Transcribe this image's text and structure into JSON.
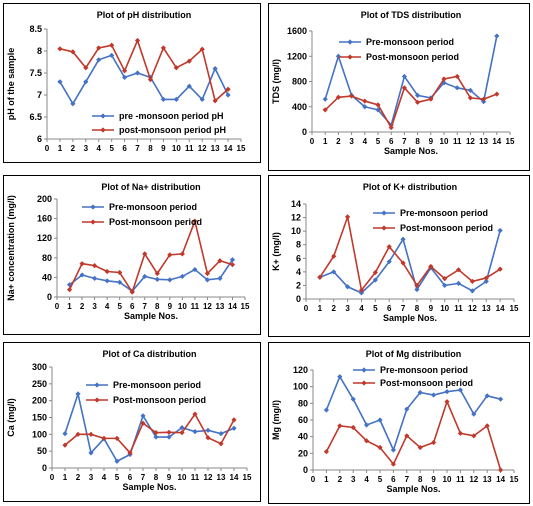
{
  "chart_data": [
    {
      "type": "line",
      "title": "Plot of pH distribution",
      "xlabel": "",
      "ylabel": "pH of the sample",
      "xlim": [
        0,
        15
      ],
      "ylim": [
        6,
        8.5
      ],
      "yticks": [
        6,
        6.5,
        7,
        7.5,
        8,
        8.5
      ],
      "ytick_labels": [
        "6",
        "6.5",
        "7",
        "7.5",
        "8",
        "8.5"
      ],
      "xticks": [
        0,
        1,
        2,
        3,
        4,
        5,
        6,
        7,
        8,
        9,
        10,
        11,
        12,
        13,
        14,
        15
      ],
      "xtick_labels": [
        "0",
        "1",
        "2",
        "3",
        "4",
        "5",
        "6",
        "7",
        "8",
        "9",
        "10",
        "11",
        "12",
        "13",
        "14",
        "15"
      ],
      "legend": "bottom-center",
      "x": [
        1,
        2,
        3,
        4,
        5,
        6,
        7,
        8,
        9,
        10,
        11,
        12,
        13,
        14
      ],
      "series": [
        {
          "name": "pre -monsoon period pH",
          "color": "#4472C4",
          "marker": "diamond",
          "values": [
            7.3,
            6.8,
            7.3,
            7.8,
            7.9,
            7.4,
            7.5,
            7.4,
            6.9,
            6.9,
            7.2,
            6.9,
            7.6,
            7.0
          ]
        },
        {
          "name": "post-monsoon period pH",
          "color": "#C0392B",
          "marker": "diamond",
          "values": [
            8.05,
            7.98,
            7.62,
            8.07,
            8.13,
            7.55,
            8.24,
            7.35,
            8.07,
            7.62,
            7.77,
            8.04,
            6.87,
            7.13
          ]
        }
      ]
    },
    {
      "type": "line",
      "title": "Plot of TDS distribution",
      "xlabel": "Sample Nos.",
      "ylabel": "TDS (mg/l)",
      "xlim": [
        0,
        15
      ],
      "ylim": [
        0,
        1600
      ],
      "yticks": [
        0,
        400,
        800,
        1200,
        1600
      ],
      "ytick_labels": [
        "0",
        "400",
        "800",
        "1200",
        "1600"
      ],
      "xticks": [
        0,
        1,
        2,
        3,
        4,
        5,
        6,
        7,
        8,
        9,
        10,
        11,
        12,
        13,
        14,
        15
      ],
      "xtick_labels": [
        "0",
        "1",
        "2",
        "3",
        "4",
        "5",
        "6",
        "7",
        "8",
        "9",
        "10",
        "11",
        "12",
        "13",
        "14",
        "15"
      ],
      "legend": "top-right",
      "x": [
        1,
        2,
        3,
        4,
        5,
        6,
        7,
        8,
        9,
        10,
        11,
        12,
        13,
        14
      ],
      "series": [
        {
          "name": "Pre-monsoon period",
          "color": "#4472C4",
          "marker": "diamond",
          "values": [
            520,
            1200,
            580,
            400,
            350,
            110,
            880,
            580,
            540,
            780,
            700,
            660,
            480,
            1520
          ]
        },
        {
          "name": "Post-monsoon period",
          "color": "#C0392B",
          "marker": "diamond",
          "values": [
            350,
            550,
            570,
            490,
            430,
            70,
            700,
            470,
            520,
            840,
            880,
            540,
            520,
            600
          ]
        }
      ]
    },
    {
      "type": "line",
      "title": "Plot of Na+ distribution",
      "xlabel": "Sample Nos.",
      "ylabel": "Na+ concentration (mg/l)",
      "xlim": [
        0,
        15
      ],
      "ylim": [
        0,
        200
      ],
      "yticks": [
        0,
        40,
        80,
        120,
        160,
        200
      ],
      "ytick_labels": [
        "0",
        "40",
        "80",
        "120",
        "160",
        "200"
      ],
      "xticks": [
        0,
        1,
        2,
        3,
        4,
        5,
        6,
        7,
        8,
        9,
        10,
        11,
        12,
        13,
        14,
        15
      ],
      "xtick_labels": [
        "0",
        "1",
        "2",
        "3",
        "4",
        "5",
        "6",
        "7",
        "8",
        "9",
        "10",
        "11",
        "12",
        "13",
        "14",
        "15"
      ],
      "legend": "top-center",
      "x": [
        1,
        2,
        3,
        4,
        5,
        6,
        7,
        8,
        9,
        10,
        11,
        12,
        13,
        14
      ],
      "series": [
        {
          "name": "Pre-monsoon period",
          "color": "#4472C4",
          "marker": "diamond",
          "values": [
            25,
            45,
            38,
            33,
            30,
            12,
            42,
            36,
            35,
            42,
            56,
            35,
            38,
            76
          ]
        },
        {
          "name": "Post-monsoon period",
          "color": "#C0392B",
          "marker": "diamond",
          "values": [
            15,
            68,
            64,
            52,
            50,
            10,
            88,
            48,
            86,
            88,
            155,
            48,
            74,
            66
          ]
        }
      ]
    },
    {
      "type": "line",
      "title": "Plot of K+ distribution",
      "xlabel": "Sample Nos.",
      "ylabel": "K+ (mg/l)",
      "xlim": [
        0,
        15
      ],
      "ylim": [
        0,
        14
      ],
      "yticks": [
        0,
        2,
        4,
        6,
        8,
        10,
        12,
        14
      ],
      "ytick_labels": [
        "0",
        "2",
        "4",
        "6",
        "8",
        "10",
        "12",
        "14"
      ],
      "xticks": [
        0,
        1,
        2,
        3,
        4,
        5,
        6,
        7,
        8,
        9,
        10,
        11,
        12,
        13,
        14,
        15
      ],
      "xtick_labels": [
        "0",
        "1",
        "2",
        "3",
        "4",
        "5",
        "6",
        "7",
        "8",
        "9",
        "10",
        "11",
        "12",
        "13",
        "14",
        "15"
      ],
      "legend": "top-right",
      "x": [
        1,
        2,
        3,
        4,
        5,
        6,
        7,
        8,
        9,
        10,
        11,
        12,
        13,
        14
      ],
      "series": [
        {
          "name": "Pre-monsoon period",
          "color": "#4472C4",
          "marker": "diamond",
          "values": [
            3.2,
            4.0,
            1.8,
            0.9,
            2.8,
            5.5,
            8.8,
            1.4,
            4.6,
            2.0,
            2.3,
            1.2,
            2.6,
            10.1
          ]
        },
        {
          "name": "Post-monsoon period",
          "color": "#C0392B",
          "marker": "diamond",
          "values": [
            3.2,
            6.3,
            12.1,
            1.3,
            3.9,
            7.7,
            5.3,
            2.0,
            4.8,
            3.0,
            4.3,
            2.6,
            3.1,
            4.4
          ]
        }
      ]
    },
    {
      "type": "line",
      "title": "Plot of Ca distribution",
      "xlabel": "Sample Nos.",
      "ylabel": "Ca (mg/l)",
      "xlim": [
        0,
        15
      ],
      "ylim": [
        0,
        300
      ],
      "yticks": [
        0,
        50,
        100,
        150,
        200,
        250,
        300
      ],
      "ytick_labels": [
        "0",
        "50",
        "100",
        "150",
        "200",
        "250",
        "300"
      ],
      "xticks": [
        0,
        1,
        2,
        3,
        4,
        5,
        6,
        7,
        8,
        9,
        10,
        11,
        12,
        13,
        14,
        15
      ],
      "xtick_labels": [
        "0",
        "1",
        "2",
        "3",
        "4",
        "5",
        "6",
        "7",
        "8",
        "9",
        "10",
        "11",
        "12",
        "13",
        "14",
        "15"
      ],
      "legend": "top-right",
      "x": [
        1,
        2,
        3,
        4,
        5,
        6,
        7,
        8,
        9,
        10,
        11,
        12,
        13,
        14
      ],
      "series": [
        {
          "name": "Pre-monsoon period",
          "color": "#4472C4",
          "marker": "diamond",
          "values": [
            102,
            220,
            45,
            87,
            20,
            40,
            155,
            92,
            92,
            120,
            108,
            112,
            102,
            118
          ]
        },
        {
          "name": "Post-monsoon period",
          "color": "#C0392B",
          "marker": "diamond",
          "values": [
            68,
            100,
            100,
            88,
            88,
            45,
            133,
            105,
            106,
            105,
            160,
            90,
            72,
            143
          ]
        }
      ]
    },
    {
      "type": "line",
      "title": "Plot of Mg distribution",
      "xlabel": "Sample Nos.",
      "ylabel": "Mg (mg/l)",
      "xlim": [
        0,
        15
      ],
      "ylim": [
        0,
        120
      ],
      "yticks": [
        0,
        20,
        40,
        60,
        80,
        100,
        120
      ],
      "ytick_labels": [
        "0",
        "20",
        "40",
        "60",
        "80",
        "100",
        "120"
      ],
      "xticks": [
        0,
        1,
        2,
        3,
        4,
        5,
        6,
        7,
        8,
        9,
        10,
        11,
        12,
        13,
        14,
        15
      ],
      "xtick_labels": [
        "0",
        "1",
        "2",
        "3",
        "4",
        "5",
        "6",
        "7",
        "8",
        "9",
        "10",
        "11",
        "12",
        "13",
        "14",
        "15"
      ],
      "legend": "top-center",
      "x": [
        1,
        2,
        3,
        4,
        5,
        6,
        7,
        8,
        9,
        10,
        11,
        12,
        13,
        14
      ],
      "series": [
        {
          "name": "Pre-monsoon period",
          "color": "#4472C4",
          "marker": "diamond",
          "values": [
            72,
            112,
            85,
            54,
            60,
            24,
            73,
            93,
            90,
            94,
            96,
            67,
            89,
            85
          ]
        },
        {
          "name": "Post-monsoon period",
          "color": "#C0392B",
          "marker": "diamond",
          "values": [
            22,
            53,
            51,
            35,
            27,
            7,
            41,
            27,
            33,
            82,
            44,
            41,
            53,
            0
          ]
        }
      ]
    }
  ]
}
